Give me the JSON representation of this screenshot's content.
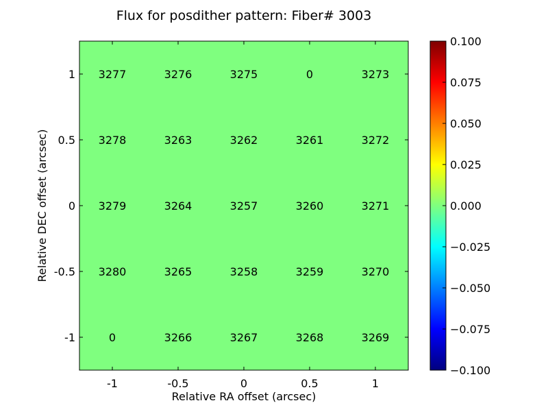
{
  "chart_data": {
    "type": "heatmap",
    "title": "Flux for posdither pattern: Fiber# 3003",
    "xlabel": "Relative RA offset (arcsec)",
    "ylabel": "Relative DEC offset (arcsec)",
    "x_ticks": [
      "-1",
      "-0.5",
      "0",
      "0.5",
      "1"
    ],
    "y_ticks": [
      "1",
      "0.5",
      "0",
      "-0.5",
      "-1"
    ],
    "x_values": [
      -1,
      -0.5,
      0,
      0.5,
      1
    ],
    "y_values": [
      1,
      0.5,
      0,
      -0.5,
      -1
    ],
    "xlim": [
      -1.25,
      1.25
    ],
    "ylim": [
      -1.25,
      1.25
    ],
    "cells": [
      [
        "3277",
        "3276",
        "3275",
        "0",
        "3273"
      ],
      [
        "3278",
        "3263",
        "3262",
        "3261",
        "3272"
      ],
      [
        "3279",
        "3264",
        "3257",
        "3260",
        "3271"
      ],
      [
        "3280",
        "3265",
        "3258",
        "3259",
        "3270"
      ],
      [
        "0",
        "3266",
        "3267",
        "3268",
        "3269"
      ]
    ],
    "heat_value": 0.0,
    "colorbar": {
      "colormap": "jet",
      "min": -0.1,
      "max": 0.1,
      "ticks": [
        0.1,
        0.075,
        0.05,
        0.025,
        0.0,
        -0.025,
        -0.05,
        -0.075,
        -0.1
      ],
      "tick_labels": [
        "0.100",
        "0.075",
        "0.050",
        "0.025",
        "0.000",
        "−0.025",
        "−0.050",
        "−0.075",
        "−0.100"
      ]
    },
    "colors": {
      "fill": "#7fff7f",
      "jet_stops": [
        "#00007f",
        "#0000ff",
        "#007fff",
        "#00ffff",
        "#7fff7f",
        "#ffff00",
        "#ff7f00",
        "#ff0000",
        "#7f0000"
      ]
    },
    "grid": false
  }
}
